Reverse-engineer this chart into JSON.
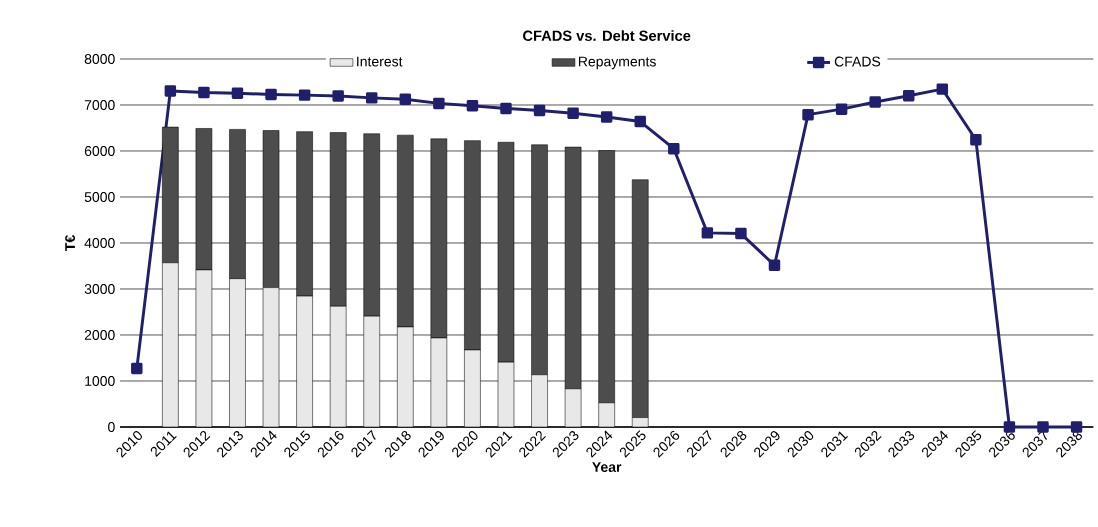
{
  "chart_data": {
    "type": "bar",
    "title": "CFADS vs. Debt Service",
    "xlabel": "Year",
    "ylabel": "T€",
    "categories": [
      "2010",
      "2011",
      "2012",
      "2013",
      "2014",
      "2015",
      "2016",
      "2017",
      "2018",
      "2019",
      "2020",
      "2021",
      "2022",
      "2023",
      "2024",
      "2025",
      "2026",
      "2027",
      "2028",
      "2029",
      "2030",
      "2031",
      "2032",
      "2033",
      "2034",
      "2035",
      "2036",
      "2037",
      "2038"
    ],
    "stacked": true,
    "ylim": [
      0,
      8000
    ],
    "yticks": [
      0,
      1000,
      2000,
      3000,
      4000,
      5000,
      6000,
      7000,
      8000
    ],
    "grid": "y",
    "legend": "top",
    "marker": "square",
    "series": [
      {
        "name": "Interest",
        "color": "#e8e8e8",
        "values": [
          null,
          3570,
          3415,
          3225,
          3030,
          2845,
          2625,
          2410,
          2175,
          1935,
          1675,
          1410,
          1135,
          830,
          525,
          205,
          null,
          null,
          null,
          null,
          null,
          null,
          null,
          null,
          null,
          null,
          null,
          null,
          null
        ]
      },
      {
        "name": "Repayments",
        "color": "#4d4d4d",
        "values": [
          null,
          2950,
          3075,
          3245,
          3415,
          3575,
          3775,
          3965,
          4170,
          4330,
          4550,
          4780,
          5000,
          5255,
          5485,
          5170,
          null,
          null,
          null,
          null,
          null,
          null,
          null,
          null,
          null,
          null,
          null,
          null,
          null
        ]
      },
      {
        "name": "CFADS",
        "type": "line",
        "color": "#1f1f6e",
        "values": [
          1270,
          7305,
          7270,
          7255,
          7230,
          7215,
          7195,
          7155,
          7125,
          7035,
          6985,
          6925,
          6880,
          6820,
          6740,
          6640,
          6050,
          4220,
          4205,
          3515,
          6790,
          6910,
          7065,
          7200,
          7345,
          6245,
          0,
          0,
          0
        ]
      }
    ]
  }
}
